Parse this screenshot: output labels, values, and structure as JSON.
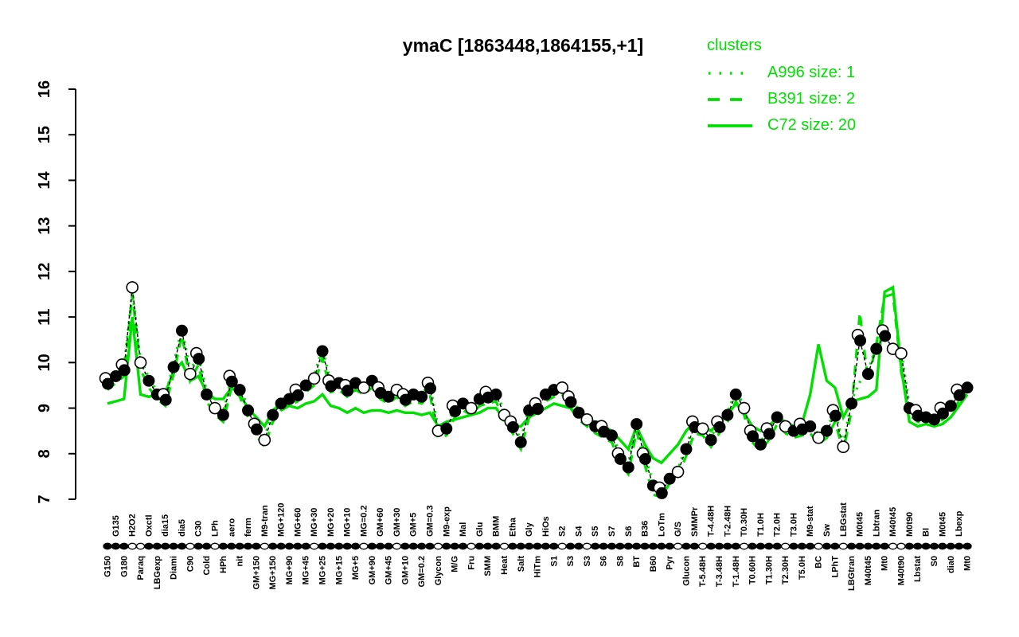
{
  "title": "ymaC [1863448,1864155,+1]",
  "colors": {
    "cluster_green": "#00E000",
    "point_filled": "#000000",
    "point_open": "#ffffff",
    "axis": "#000000"
  },
  "legend": {
    "title": "clusters",
    "items": [
      {
        "style": "dotted",
        "label": "A996 size: 1"
      },
      {
        "style": "dashed",
        "label": "B391 size: 2"
      },
      {
        "style": "solid",
        "label": "C72 size: 20"
      }
    ]
  },
  "y_axis": {
    "min": 7,
    "max": 16,
    "ticks": [
      7,
      8,
      9,
      10,
      11,
      12,
      13,
      14,
      15,
      16
    ]
  },
  "chart_data": {
    "type": "line",
    "title": "ymaC [1863448,1864155,+1]",
    "ylim": [
      7,
      16
    ],
    "grid": false,
    "legend_position": "top-right",
    "conditions": [
      "G150|b",
      "G135|t",
      "G180|b",
      "H2O2|t",
      "Paraq|b",
      "Oxctl|t",
      "LBGexp|b",
      "dia15|t",
      "Diami|b",
      "dia5|t",
      "C90|b",
      "C30|t",
      "Cold|b",
      "LPh|t",
      "HPh|b",
      "aero|t",
      "nit|b",
      "ferm|t",
      "GM+150|b",
      "M9-tran|t",
      "MG+150|b",
      "MG+120|t",
      "MG+90|b",
      "MG+60|t",
      "MG+45|b",
      "MG+30|t",
      "MG+25|b",
      "MG+20|t",
      "MG+15|b",
      "MG+10|t",
      "MG+5|b",
      "MG=0.2|t",
      "GM+90|b",
      "GM+60|t",
      "GM+45|b",
      "GM+30|t",
      "GM+10|b",
      "GM+5|t",
      "GM=0.2|b",
      "GM=0.3|t",
      "Glycon|b",
      "M9-exp|t",
      "M/G|b",
      "Mal|t",
      "Fru|b",
      "Glu|t",
      "SMM|b",
      "BMM|t",
      "Heat|b",
      "Etha|t",
      "Salt|b",
      "Gly|t",
      "HiTm|b",
      "HiOs|t",
      "S1|b",
      "S2|t",
      "S3|b",
      "S4|t",
      "S3|b",
      "S5|t",
      "S6|b",
      "S7|t",
      "S8|b",
      "S6|t",
      "BT|b",
      "B36|t",
      "B60|b",
      "LoTm|t",
      "Pyr|b",
      "G/S|t",
      "Glucon|b",
      "SMMPr|t",
      "T-5.48H|b",
      "T-4.48H|t",
      "T-3.48H|b",
      "T-2.48H|t",
      "T-1.48H|b",
      "T0.30H|t",
      "T0.60H|b",
      "T1.0H|t",
      "T1.30H|b",
      "T2.0H|t",
      "T2.30H|b",
      "T3.0H|t",
      "T5.0H|b",
      "M9-stat|t",
      "BC|b",
      "Sw|t",
      "LPhT|b",
      "LBGstat|t",
      "LBGtran|b",
      "M0t45|t",
      "M40t45|b",
      "Lbtran|t",
      "Mt0|b",
      "M40t45|t",
      "M40t90|b",
      "M0t90|t",
      "Lbstat|b",
      "BI|t",
      "S0|b",
      "M0t45|t",
      "dia0|b",
      "Lbexp|t",
      "Mt0|b"
    ],
    "series": [
      {
        "name": "ymaC profile points",
        "style": "black-dashed-points",
        "markers": "bfbooffbffobfofbffbofffbfofbfbfofbfobffbofbfofbfobffbffobfofbfbffbfbfofbofbffobfbfofbfofbofbffboofbffbfbf",
        "values": [
          9.55,
          9.7,
          9.85,
          11.65,
          10.0,
          9.6,
          9.3,
          9.2,
          9.9,
          10.7,
          9.75,
          10.1,
          9.3,
          9.0,
          8.85,
          9.6,
          9.4,
          8.95,
          8.55,
          8.3,
          8.85,
          9.1,
          9.2,
          9.3,
          9.5,
          9.65,
          10.25,
          9.5,
          9.55,
          9.4,
          9.55,
          9.45,
          9.6,
          9.35,
          9.25,
          9.4,
          9.2,
          9.3,
          9.25,
          9.45,
          8.5,
          8.55,
          8.95,
          9.1,
          9.0,
          9.2,
          9.25,
          9.3,
          8.85,
          8.6,
          8.25,
          8.95,
          9.0,
          9.3,
          9.4,
          9.45,
          9.15,
          8.9,
          8.75,
          8.6,
          8.5,
          8.4,
          7.9,
          7.7,
          8.65,
          7.9,
          7.3,
          7.15,
          7.45,
          7.6,
          8.1,
          8.6,
          8.55,
          8.3,
          8.6,
          8.85,
          9.3,
          9.0,
          8.4,
          8.2,
          8.45,
          8.8,
          8.6,
          8.5,
          8.55,
          8.6,
          8.35,
          8.5,
          8.85,
          8.15,
          9.1,
          10.5,
          9.75,
          10.3,
          10.6,
          10.3,
          10.2,
          9.0,
          8.85,
          8.8,
          8.75,
          8.9,
          9.05,
          9.3,
          9.45
        ]
      },
      {
        "name": "A996 size: 1",
        "style": "green-dotted",
        "values": [
          9.62,
          9.77,
          9.92,
          11.55,
          10.07,
          9.67,
          9.37,
          9.27,
          9.97,
          10.77,
          9.82,
          10.17,
          9.37,
          9.07,
          8.92,
          9.67,
          9.47,
          9.02,
          8.62,
          8.37,
          8.92,
          9.17,
          9.27,
          9.37,
          9.57,
          9.72,
          10.32,
          9.57,
          9.62,
          9.47,
          9.62,
          9.52,
          9.67,
          9.42,
          9.32,
          9.47,
          9.27,
          9.37,
          9.32,
          9.52,
          8.57,
          8.62,
          9.02,
          9.17,
          9.07,
          9.27,
          9.32,
          9.37,
          8.92,
          8.67,
          8.32,
          9.02,
          9.07,
          9.37,
          9.47,
          9.52,
          9.22,
          8.97,
          8.82,
          8.67,
          8.57,
          8.47,
          7.97,
          7.77,
          8.72,
          7.97,
          7.37,
          7.22,
          7.52,
          7.67,
          8.17,
          8.67,
          8.62,
          8.37,
          8.67,
          8.92,
          9.37,
          9.07,
          8.47,
          8.27,
          8.52,
          8.87,
          8.67,
          8.57,
          8.62,
          8.67,
          8.42,
          8.57,
          8.92,
          8.22,
          9.17,
          9.57,
          9.82,
          10.37,
          10.67,
          10.37,
          10.27,
          9.07,
          8.92,
          8.87,
          8.82,
          8.97,
          9.12,
          9.37,
          9.52
        ]
      },
      {
        "name": "B391 size: 2",
        "style": "green-dashed",
        "values": [
          9.4,
          9.55,
          9.7,
          11.5,
          9.85,
          9.45,
          9.2,
          9.05,
          9.75,
          10.6,
          9.6,
          9.95,
          9.15,
          8.85,
          8.7,
          9.45,
          9.25,
          8.8,
          8.4,
          8.15,
          8.7,
          8.95,
          9.05,
          9.15,
          9.35,
          9.5,
          10.1,
          9.35,
          9.4,
          9.25,
          9.4,
          9.3,
          9.45,
          9.2,
          9.1,
          9.25,
          9.05,
          9.15,
          9.1,
          9.3,
          8.35,
          8.4,
          8.8,
          8.95,
          8.85,
          9.05,
          9.1,
          9.15,
          8.7,
          8.45,
          8.1,
          8.8,
          8.85,
          9.15,
          9.25,
          9.3,
          9.0,
          8.75,
          8.6,
          8.45,
          8.35,
          8.25,
          7.8,
          7.55,
          8.5,
          7.75,
          7.1,
          7.05,
          7.35,
          7.5,
          7.95,
          8.45,
          8.4,
          8.15,
          8.45,
          8.7,
          9.15,
          8.85,
          8.25,
          8.05,
          8.3,
          8.65,
          8.45,
          8.35,
          8.4,
          8.45,
          8.2,
          8.35,
          8.7,
          8.05,
          8.95,
          11.1,
          9.6,
          10.4,
          11.45,
          11.5,
          9.8,
          8.85,
          8.7,
          8.65,
          8.6,
          8.75,
          8.9,
          9.15,
          9.3
        ]
      },
      {
        "name": "C72 size: 20",
        "style": "green-solid",
        "values": [
          9.1,
          9.15,
          9.2,
          11.0,
          9.3,
          9.25,
          9.3,
          9.35,
          9.8,
          10.0,
          9.6,
          9.7,
          9.35,
          9.2,
          9.2,
          9.45,
          9.3,
          9.0,
          8.8,
          8.6,
          8.95,
          9.1,
          9.05,
          9.0,
          9.1,
          9.15,
          9.3,
          9.05,
          9.0,
          8.9,
          9.0,
          8.9,
          8.95,
          8.95,
          8.9,
          8.95,
          8.9,
          8.9,
          8.85,
          8.9,
          8.6,
          8.7,
          8.75,
          8.8,
          8.85,
          8.9,
          9.0,
          9.0,
          8.75,
          8.6,
          8.6,
          8.8,
          8.9,
          9.0,
          9.1,
          9.05,
          9.0,
          8.85,
          8.75,
          8.7,
          8.6,
          8.5,
          8.3,
          8.1,
          8.6,
          8.2,
          7.9,
          7.8,
          8.0,
          8.2,
          8.5,
          8.7,
          8.6,
          8.5,
          8.7,
          8.85,
          9.1,
          8.9,
          8.6,
          8.5,
          8.6,
          8.8,
          8.7,
          8.6,
          8.65,
          9.3,
          10.4,
          9.6,
          9.45,
          8.8,
          9.15,
          9.2,
          9.25,
          9.4,
          11.55,
          11.65,
          9.9,
          8.7,
          8.6,
          8.65,
          8.6,
          8.65,
          8.8,
          9.05,
          9.3
        ]
      }
    ]
  }
}
